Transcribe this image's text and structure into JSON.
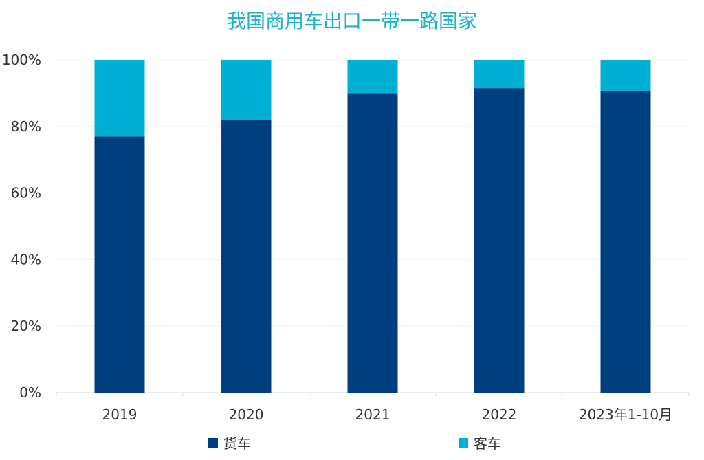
{
  "chart_data": {
    "type": "bar",
    "stacked": true,
    "title": "我国商用车出口一带一路国家",
    "categories": [
      "2019",
      "2020",
      "2021",
      "2022",
      "2023年1-10月"
    ],
    "series": [
      {
        "name": "货车",
        "color": "#003f7f",
        "values": [
          77,
          82,
          90,
          91.5,
          90.5
        ]
      },
      {
        "name": "客车",
        "color": "#00b0d4",
        "values": [
          23,
          18,
          10,
          8.5,
          9.5
        ]
      }
    ],
    "ylim": [
      0,
      100
    ],
    "yticks": [
      "0%",
      "20%",
      "40%",
      "60%",
      "80%",
      "100%"
    ],
    "grid": true,
    "legend_position": "bottom",
    "title_color": "#1fb3c9"
  }
}
